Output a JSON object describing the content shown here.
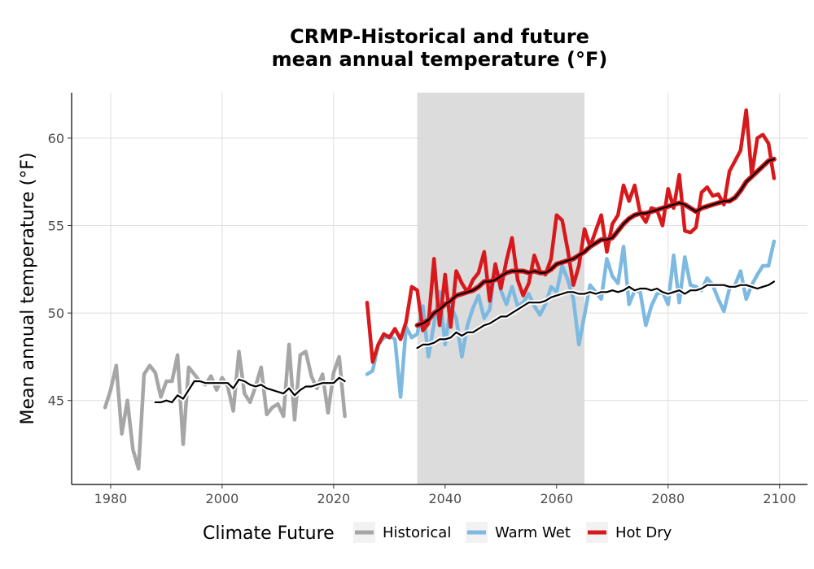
{
  "chart_data": {
    "type": "line",
    "title_lines": [
      "CRMP-Historical and future",
      "mean annual temperature (°F)"
    ],
    "xlabel": "",
    "ylabel": "Mean annual temperature (°F)",
    "xlim": [
      1973,
      2105
    ],
    "ylim": [
      40.2,
      62.6
    ],
    "x_ticks": [
      1980,
      2000,
      2020,
      2040,
      2060,
      2080,
      2100
    ],
    "y_ticks": [
      45,
      50,
      55,
      60
    ],
    "grid": true,
    "shaded_period": {
      "from": 2035,
      "to": 2065,
      "color": "#dcdcdc"
    },
    "legend": {
      "title": "Climate Future",
      "position": "bottom",
      "entries": [
        {
          "label": "Historical",
          "color": "#a6a6a6"
        },
        {
          "label": "Warm Wet",
          "color": "#7db9e0"
        },
        {
          "label": "Hot Dry",
          "color": "#d7191c"
        }
      ]
    },
    "series": [
      {
        "name": "Historical",
        "color": "#a6a6a6",
        "x": [
          1979,
          1980,
          1981,
          1982,
          1983,
          1984,
          1985,
          1986,
          1987,
          1988,
          1989,
          1990,
          1991,
          1992,
          1993,
          1994,
          1995,
          1996,
          1997,
          1998,
          1999,
          2000,
          2001,
          2002,
          2003,
          2004,
          2005,
          2006,
          2007,
          2008,
          2009,
          2010,
          2011,
          2012,
          2013,
          2014,
          2015,
          2016,
          2017,
          2018,
          2019,
          2020,
          2021,
          2022
        ],
        "y": [
          44.6,
          45.6,
          47.0,
          43.1,
          45.0,
          42.2,
          41.1,
          46.5,
          47.0,
          46.6,
          45.2,
          46.1,
          46.1,
          47.6,
          42.5,
          46.9,
          46.5,
          46.1,
          45.9,
          46.4,
          45.6,
          46.3,
          45.8,
          44.4,
          47.8,
          45.4,
          44.9,
          45.8,
          46.9,
          44.2,
          44.6,
          44.8,
          44.1,
          48.2,
          43.9,
          47.6,
          47.8,
          46.4,
          45.7,
          46.5,
          44.3,
          46.6,
          47.5,
          44.1
        ]
      },
      {
        "name": "",
        "color": "#000000",
        "outline": "#ffffff",
        "x": [
          1988,
          1989,
          1990,
          1991,
          1992,
          1993,
          1994,
          1995,
          1996,
          1997,
          1998,
          1999,
          2000,
          2001,
          2002,
          2003,
          2004,
          2005,
          2006,
          2007,
          2008,
          2009,
          2010,
          2011,
          2012,
          2013,
          2014,
          2015,
          2016,
          2017,
          2018,
          2019,
          2020,
          2021,
          2022
        ],
        "y": [
          44.9,
          44.9,
          45.0,
          44.9,
          45.3,
          45.1,
          45.6,
          46.1,
          46.1,
          46.0,
          46.0,
          46.0,
          46.0,
          46.0,
          45.7,
          46.2,
          46.1,
          45.9,
          45.8,
          45.9,
          45.7,
          45.6,
          45.5,
          45.4,
          45.7,
          45.3,
          45.6,
          45.8,
          45.8,
          45.9,
          46.0,
          46.0,
          46.0,
          46.3,
          46.1
        ]
      },
      {
        "name": "Warm Wet",
        "color": "#7db9e0",
        "x": [
          2026,
          2027,
          2028,
          2029,
          2030,
          2031,
          2032,
          2033,
          2034,
          2035,
          2036,
          2037,
          2038,
          2039,
          2040,
          2041,
          2042,
          2043,
          2044,
          2045,
          2046,
          2047,
          2048,
          2049,
          2050,
          2051,
          2052,
          2053,
          2054,
          2055,
          2056,
          2057,
          2058,
          2059,
          2060,
          2061,
          2062,
          2063,
          2064,
          2065,
          2066,
          2067,
          2068,
          2069,
          2070,
          2071,
          2072,
          2073,
          2074,
          2075,
          2076,
          2077,
          2078,
          2079,
          2080,
          2081,
          2082,
          2083,
          2084,
          2085,
          2086,
          2087,
          2088,
          2089,
          2090,
          2091,
          2092,
          2093,
          2094,
          2095,
          2096,
          2097,
          2098,
          2099
        ],
        "y": [
          46.5,
          46.7,
          48.2,
          48.6,
          48.7,
          48.5,
          45.2,
          49.2,
          48.6,
          48.8,
          50.4,
          47.5,
          49.4,
          51.2,
          48.2,
          50.4,
          49.7,
          47.5,
          49.3,
          50.3,
          51.0,
          49.7,
          50.2,
          52.8,
          51.3,
          50.5,
          51.5,
          50.4,
          50.6,
          51.1,
          50.4,
          49.9,
          50.5,
          51.5,
          51.2,
          52.7,
          51.9,
          50.8,
          48.2,
          49.9,
          51.6,
          51.2,
          50.8,
          53.1,
          52.1,
          51.7,
          53.8,
          50.5,
          51.3,
          51.2,
          49.3,
          50.4,
          51.1,
          51.2,
          50.5,
          53.3,
          50.6,
          53.2,
          51.6,
          51.5,
          51.3,
          52.0,
          51.6,
          50.8,
          50.1,
          51.4,
          51.6,
          52.4,
          50.8,
          51.6,
          52.2,
          52.7,
          52.7,
          54.1
        ]
      },
      {
        "name": "Hot Dry",
        "color": "#d7191c",
        "x": [
          2026,
          2027,
          2028,
          2029,
          2030,
          2031,
          2032,
          2033,
          2034,
          2035,
          2036,
          2037,
          2038,
          2039,
          2040,
          2041,
          2042,
          2043,
          2044,
          2045,
          2046,
          2047,
          2048,
          2049,
          2050,
          2051,
          2052,
          2053,
          2054,
          2055,
          2056,
          2057,
          2058,
          2059,
          2060,
          2061,
          2062,
          2063,
          2064,
          2065,
          2066,
          2067,
          2068,
          2069,
          2070,
          2071,
          2072,
          2073,
          2074,
          2075,
          2076,
          2077,
          2078,
          2079,
          2080,
          2081,
          2082,
          2083,
          2084,
          2085,
          2086,
          2087,
          2088,
          2089,
          2090,
          2091,
          2092,
          2093,
          2094,
          2095,
          2096,
          2097,
          2098,
          2099
        ],
        "y": [
          50.6,
          47.2,
          48.2,
          48.8,
          48.6,
          49.1,
          48.5,
          49.5,
          51.5,
          51.3,
          49.0,
          49.4,
          53.1,
          49.3,
          52.2,
          49.2,
          52.4,
          51.7,
          51.2,
          51.9,
          52.3,
          53.5,
          50.7,
          52.8,
          51.4,
          53.0,
          54.3,
          51.9,
          51.0,
          51.7,
          53.3,
          52.4,
          52.2,
          53.1,
          55.6,
          55.3,
          53.6,
          51.6,
          52.7,
          54.8,
          53.8,
          54.7,
          55.6,
          53.5,
          55.1,
          55.6,
          57.3,
          56.4,
          57.3,
          55.7,
          55.2,
          56.0,
          55.9,
          55.0,
          57.1,
          56.0,
          57.9,
          54.7,
          54.6,
          54.9,
          56.9,
          57.2,
          56.7,
          56.8,
          56.2,
          58.1,
          58.7,
          59.3,
          61.6,
          57.9,
          60.0,
          60.2,
          59.7,
          57.7
        ]
      },
      {
        "name": "",
        "color": "#000000",
        "outline": "#ffffff",
        "x": [
          2035,
          2036,
          2037,
          2038,
          2039,
          2040,
          2041,
          2042,
          2043,
          2044,
          2045,
          2046,
          2047,
          2048,
          2049,
          2050,
          2051,
          2052,
          2053,
          2054,
          2055,
          2056,
          2057,
          2058,
          2059,
          2060,
          2061,
          2062,
          2063,
          2064,
          2065,
          2066,
          2067,
          2068,
          2069,
          2070,
          2071,
          2072,
          2073,
          2074,
          2075,
          2076,
          2077,
          2078,
          2079,
          2080,
          2081,
          2082,
          2083,
          2084,
          2085,
          2086,
          2087,
          2088,
          2089,
          2090,
          2091,
          2092,
          2093,
          2094,
          2095,
          2096,
          2097,
          2098,
          2099
        ],
        "y": [
          48.0,
          48.2,
          48.2,
          48.3,
          48.5,
          48.5,
          48.6,
          48.9,
          48.7,
          48.9,
          48.9,
          49.1,
          49.3,
          49.4,
          49.6,
          49.8,
          49.8,
          50.0,
          50.2,
          50.4,
          50.6,
          50.6,
          50.6,
          50.7,
          50.9,
          51.0,
          51.1,
          51.2,
          51.2,
          51.1,
          51.1,
          51.2,
          51.1,
          51.2,
          51.2,
          51.3,
          51.2,
          51.3,
          51.5,
          51.3,
          51.4,
          51.4,
          51.3,
          51.4,
          51.2,
          51.1,
          51.2,
          51.3,
          51.1,
          51.3,
          51.3,
          51.4,
          51.6,
          51.6,
          51.6,
          51.6,
          51.5,
          51.5,
          51.6,
          51.6,
          51.5,
          51.4,
          51.5,
          51.6,
          51.8
        ]
      },
      {
        "name": "",
        "color": "#000000",
        "outline": "#d7191c",
        "x": [
          2035,
          2036,
          2037,
          2038,
          2039,
          2040,
          2041,
          2042,
          2043,
          2044,
          2045,
          2046,
          2047,
          2048,
          2049,
          2050,
          2051,
          2052,
          2053,
          2054,
          2055,
          2056,
          2057,
          2058,
          2059,
          2060,
          2061,
          2062,
          2063,
          2064,
          2065,
          2066,
          2067,
          2068,
          2069,
          2070,
          2071,
          2072,
          2073,
          2074,
          2075,
          2076,
          2077,
          2078,
          2079,
          2080,
          2081,
          2082,
          2083,
          2084,
          2085,
          2086,
          2087,
          2088,
          2089,
          2090,
          2091,
          2092,
          2093,
          2094,
          2095,
          2096,
          2097,
          2098,
          2099
        ],
        "y": [
          49.3,
          49.4,
          49.6,
          50.0,
          50.2,
          50.5,
          50.7,
          51.0,
          51.1,
          51.2,
          51.3,
          51.5,
          51.8,
          51.8,
          51.9,
          52.1,
          52.3,
          52.4,
          52.4,
          52.4,
          52.3,
          52.4,
          52.3,
          52.3,
          52.5,
          52.8,
          52.9,
          53.0,
          53.1,
          53.3,
          53.5,
          53.8,
          54.0,
          54.2,
          54.2,
          54.3,
          54.7,
          55.1,
          55.4,
          55.6,
          55.7,
          55.7,
          55.8,
          55.9,
          56.0,
          56.1,
          56.2,
          56.3,
          56.2,
          56.0,
          55.8,
          56.0,
          56.1,
          56.2,
          56.3,
          56.4,
          56.4,
          56.6,
          57.0,
          57.5,
          57.8,
          58.1,
          58.4,
          58.7,
          58.8
        ]
      }
    ]
  }
}
